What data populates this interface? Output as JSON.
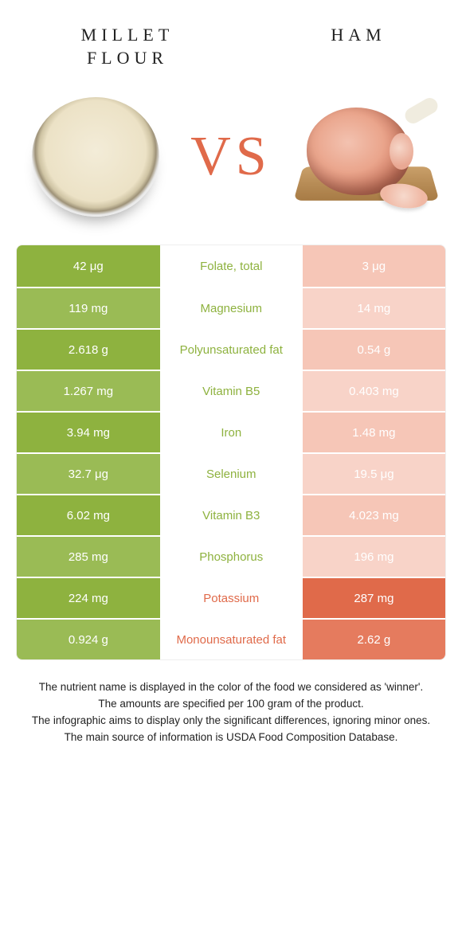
{
  "header": {
    "left_title": "Millet flour",
    "right_title": "Ham",
    "vs_label": "VS"
  },
  "colors": {
    "left": "#8eb23f",
    "right": "#e06a4a",
    "right_light": "#f6c6b7",
    "vs": "#e06a4a"
  },
  "rows": [
    {
      "left": "42 μg",
      "label": "Folate, total",
      "right": "3 μg",
      "winner": "left"
    },
    {
      "left": "119 mg",
      "label": "Magnesium",
      "right": "14 mg",
      "winner": "left"
    },
    {
      "left": "2.618 g",
      "label": "Polyunsaturated fat",
      "right": "0.54 g",
      "winner": "left"
    },
    {
      "left": "1.267 mg",
      "label": "Vitamin B5",
      "right": "0.403 mg",
      "winner": "left"
    },
    {
      "left": "3.94 mg",
      "label": "Iron",
      "right": "1.48 mg",
      "winner": "left"
    },
    {
      "left": "32.7 μg",
      "label": "Selenium",
      "right": "19.5 μg",
      "winner": "left"
    },
    {
      "left": "6.02 mg",
      "label": "Vitamin B3",
      "right": "4.023 mg",
      "winner": "left"
    },
    {
      "left": "285 mg",
      "label": "Phosphorus",
      "right": "196 mg",
      "winner": "left"
    },
    {
      "left": "224 mg",
      "label": "Potassium",
      "right": "287 mg",
      "winner": "right"
    },
    {
      "left": "0.924 g",
      "label": "Monounsaturated fat",
      "right": "2.62 g",
      "winner": "right"
    }
  ],
  "notes": {
    "line1": "The nutrient name is displayed in the color of the food we considered as 'winner'.",
    "line2": "The amounts are specified per 100 gram of the product.",
    "line3": "The infographic aims to display only the significant differences, ignoring minor ones.",
    "line4": "The main source of information is USDA Food Composition Database."
  }
}
